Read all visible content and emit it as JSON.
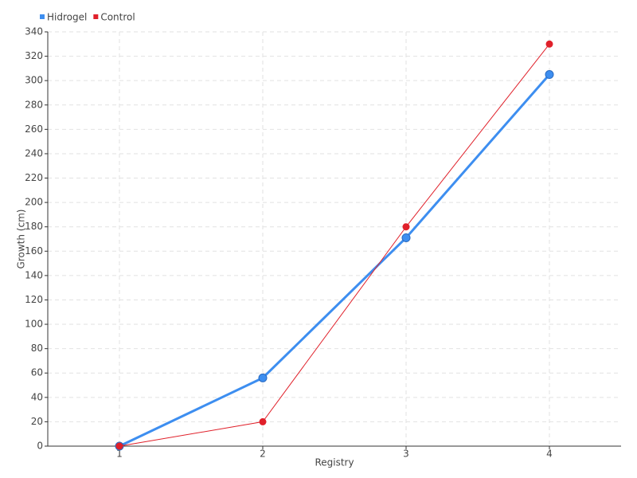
{
  "chart_data": {
    "type": "line",
    "x_label": "Registry",
    "y_label": "Growth (cm)",
    "categories": [
      "1",
      "2",
      "3",
      "4"
    ],
    "series": [
      {
        "name": "Hidrogel",
        "color": "#3d8ef0",
        "values": [
          0,
          56,
          171,
          305
        ]
      },
      {
        "name": "Control",
        "color": "#e0202a",
        "values": [
          0,
          20,
          180,
          330
        ]
      }
    ],
    "ylim": [
      0,
      340
    ],
    "yticks": [
      0,
      20,
      40,
      60,
      80,
      100,
      120,
      140,
      160,
      180,
      200,
      220,
      240,
      260,
      280,
      300,
      320,
      340
    ],
    "grid": true,
    "legend": "top-left"
  }
}
